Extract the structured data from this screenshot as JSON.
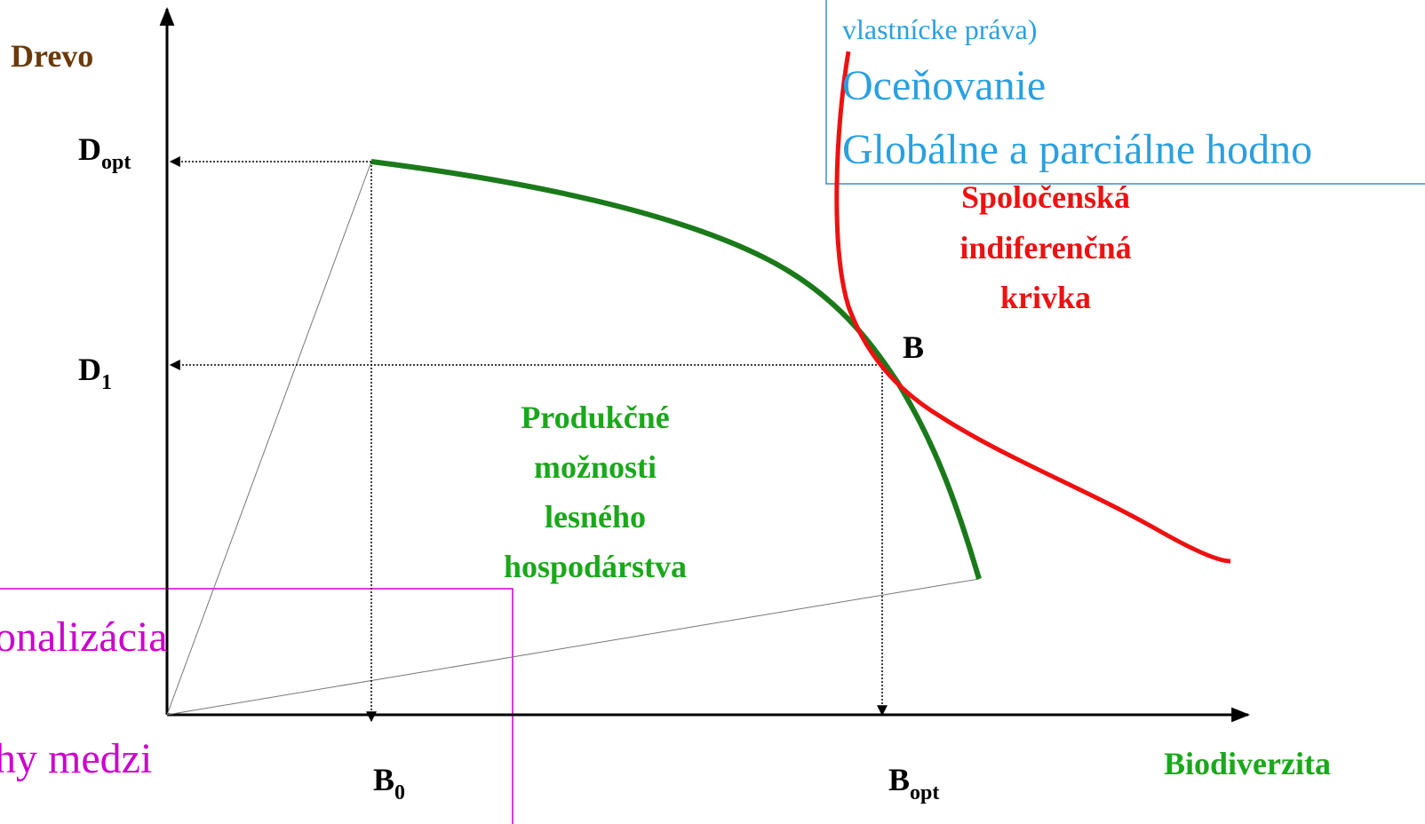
{
  "axes": {
    "y_label": "Drevo",
    "x_label": "Biodiverzita"
  },
  "y_marks": [
    {
      "main": "D",
      "sub": "opt"
    },
    {
      "main": "D",
      "sub": "1"
    }
  ],
  "x_marks": [
    {
      "main": "B",
      "sub": "0"
    },
    {
      "main": "B",
      "sub": "opt"
    }
  ],
  "point_label": "B",
  "production_label": [
    "Produkčné",
    "možnosti",
    "lesného",
    "hospodárstva"
  ],
  "indifference_label": [
    "Spoločenská",
    "indiferenčná",
    "krivka"
  ],
  "blue_box": [
    "vlastnícke práva)",
    "Oceňovanie",
    "Globálne a parciálne hodno"
  ],
  "magenta_box": [
    "onalizácia",
    "hy medzi"
  ]
}
